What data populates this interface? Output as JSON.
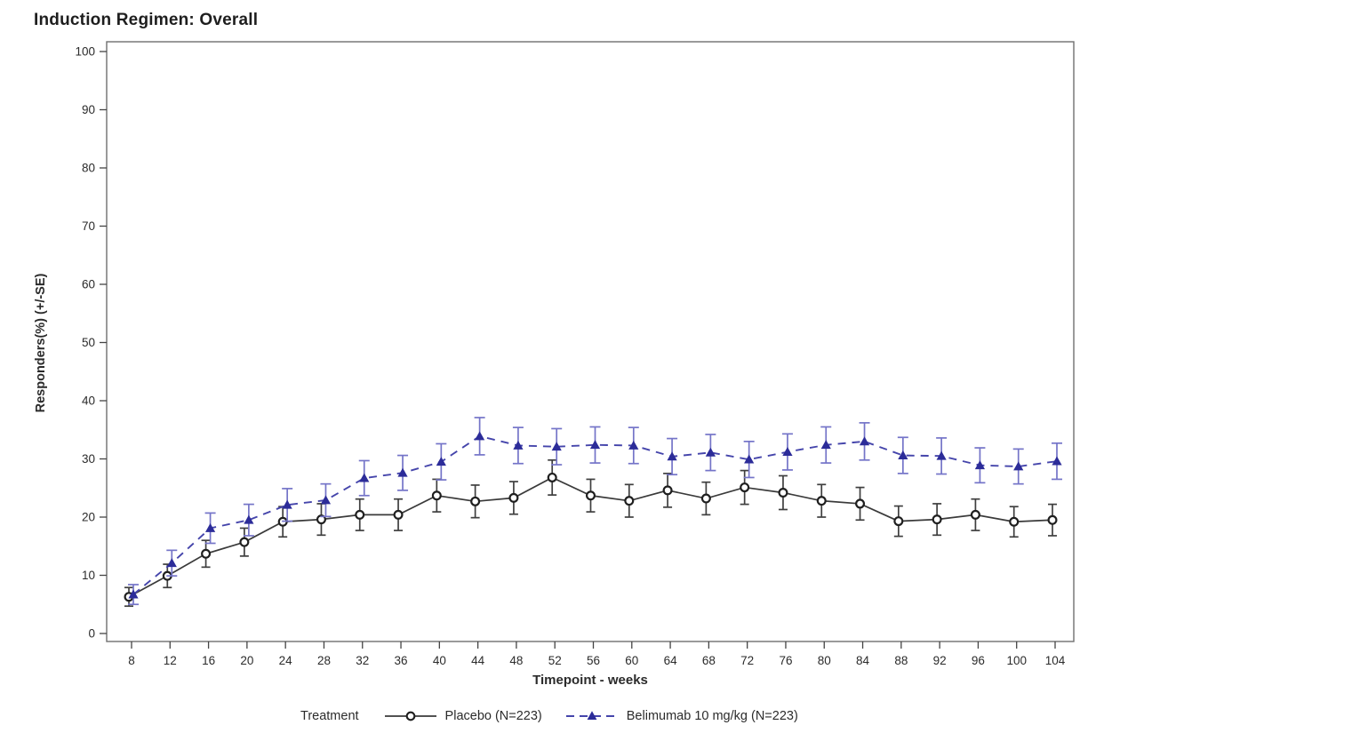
{
  "page": {
    "title": "Induction Regimen: Overall"
  },
  "chart_data": {
    "type": "line",
    "title": "Induction Regimen: Overall",
    "xlabel": "Timepoint - weeks",
    "ylabel": "Responders(%) (+/-SE)",
    "legend_title": "Treatment",
    "legend_position": "bottom",
    "grid": false,
    "error_bars": "+/-SE",
    "xlim": [
      5.4,
      106
    ],
    "ylim": [
      0,
      100
    ],
    "yticks": [
      0,
      10,
      20,
      30,
      40,
      50,
      60,
      70,
      80,
      90,
      100
    ],
    "x": [
      8,
      12,
      16,
      20,
      24,
      28,
      32,
      36,
      40,
      44,
      48,
      52,
      56,
      60,
      64,
      68,
      72,
      76,
      80,
      84,
      88,
      92,
      96,
      100,
      104
    ],
    "series": [
      {
        "name": "Placebo (N=223)",
        "marker": "open-circle",
        "line_style": "solid",
        "line_color": "#3a3a3a",
        "marker_color": "#1f1f1f",
        "error_color": "#3f3f3f",
        "values": [
          6.3,
          9.9,
          13.7,
          15.7,
          19.2,
          19.6,
          20.4,
          20.4,
          23.7,
          22.7,
          23.3,
          26.8,
          23.7,
          22.8,
          24.6,
          23.2,
          25.1,
          24.2,
          22.8,
          22.3,
          19.3,
          19.6,
          20.4,
          19.2,
          19.5
        ],
        "se": [
          1.6,
          2.0,
          2.3,
          2.4,
          2.6,
          2.7,
          2.7,
          2.7,
          2.8,
          2.8,
          2.8,
          3.0,
          2.8,
          2.8,
          2.9,
          2.8,
          2.9,
          2.9,
          2.8,
          2.8,
          2.6,
          2.7,
          2.7,
          2.6,
          2.7
        ]
      },
      {
        "name": "Belimumab 10 mg/kg (N=223)",
        "marker": "filled-triangle",
        "line_style": "dashed",
        "line_color": "#4545ab",
        "marker_color": "#2c2c99",
        "error_color": "#7474c8",
        "values": [
          6.7,
          12.1,
          18.1,
          19.5,
          22.1,
          22.9,
          26.7,
          27.6,
          29.5,
          33.9,
          32.3,
          32.1,
          32.4,
          32.3,
          30.4,
          31.1,
          29.9,
          31.2,
          32.4,
          33.0,
          30.6,
          30.5,
          28.9,
          28.7,
          29.6
        ],
        "se": [
          1.7,
          2.2,
          2.6,
          2.7,
          2.8,
          2.8,
          3.0,
          3.0,
          3.1,
          3.2,
          3.1,
          3.1,
          3.1,
          3.1,
          3.1,
          3.1,
          3.1,
          3.1,
          3.1,
          3.2,
          3.1,
          3.1,
          3.0,
          3.0,
          3.1
        ]
      }
    ]
  }
}
